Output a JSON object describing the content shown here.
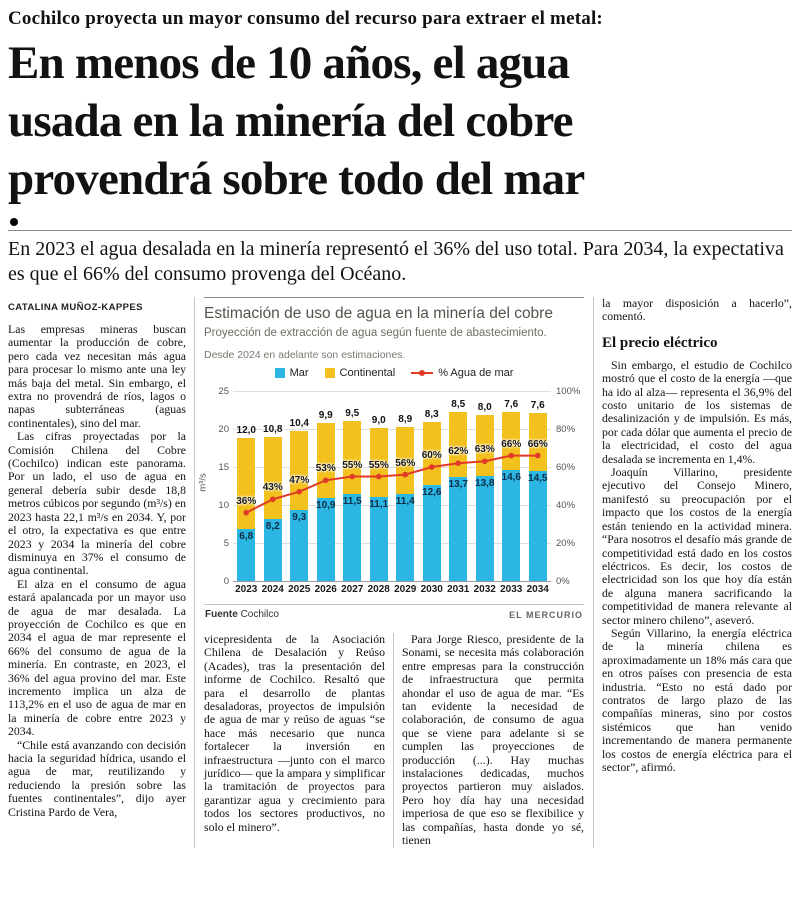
{
  "kicker": "Cochilco proyecta un mayor consumo del recurso para extraer el metal:",
  "headline": {
    "lines": [
      "En menos de 10 años, el agua",
      "usada en la minería del cobre",
      "provendrá sobre todo del mar"
    ]
  },
  "deck": "En 2023 el agua desalada en la minería representó el 36% del uso total. Para 2034, la expectativa es que el 66% del consumo provenga del Océano.",
  "byline": "CATALINA MUÑOZ-KAPPES",
  "columns": {
    "left": [
      "Las empresas mineras buscan aumentar la producción de cobre, pero cada vez necesitan más agua para procesar lo mismo ante una ley más baja del metal. Sin embargo, el extra no provendrá de ríos, lagos o napas subterráneas (aguas continentales), sino del mar.",
      "Las cifras proyectadas por la Comisión Chilena del Cobre (Cochilco) indican este panorama. Por un lado, el uso de agua en general debería subir desde 18,8 metros cúbicos por segundo (m³/s) en 2023 hasta 22,1 m³/s en 2034. Y, por el otro, la expectativa es que entre 2023 y 2034 la minería del cobre disminuya en 37% el consumo de agua continental.",
      "El alza en el consumo de agua estará apalancada por un mayor uso de agua de mar desalada. La proyección de Cochilco es que en 2034 el agua de mar represente el 66% del consumo de agua de la minería. En contraste, en 2023, el 36% del agua provino del mar. Este incremento implica un alza de 113,2% en el uso de agua de mar en la minería de cobre entre 2023 y 2034.",
      "“Chile está avanzando con decisión hacia la seguridad hídrica, usando el agua de mar, reutilizando y reduciendo la presión sobre las fuentes continentales”, dijo ayer Cristina Pardo de Vera,"
    ],
    "center_left": [
      "vicepresidenta de la Asociación Chilena de Desalación y Reúso (Acades), tras la presentación del informe de Cochilco. Resaltó que para el desarrollo de plantas desaladoras, proyectos de impulsión de agua de mar y reúso de aguas “se hace más necesario que nunca fortalecer la inversión en infraestructura —junto con el marco jurídico— que la ampara y simplificar la tramitación de proyectos para garantizar agua y crecimiento para todos los sectores productivos, no solo el minero”."
    ],
    "center_right": [
      "Para Jorge Riesco, presidente de la Sonami, se necesita más colaboración entre empresas para la construcción de infraestructura que permita ahondar el uso de agua de mar. “Es tan evidente la necesidad de colaboración, de consumo de agua que se viene para adelante si se cumplen las proyecciones de producción (...). Hay muchas instalaciones dedicadas, muchos proyectos partieron muy aislados. Pero hoy día hay una necesidad imperiosa de que eso se flexibilice y las compañías, hasta donde yo sé, tienen"
    ],
    "right": {
      "continuation": "la mayor disposición a hacerlo”, comentó.",
      "heading": "El precio eléctrico",
      "paragraphs": [
        "Sin embargo, el estudio de Cochilco mostró que el costo de la energía —que ha ido al alza— representa el 36,9% del costo unitario de los sistemas de desalinización y de impulsión. Es más, por cada dólar que aumenta el precio de la electricidad, el costo del agua desalada se incrementa en 1,4%.",
        "Joaquín Villarino, presidente ejecutivo del Consejo Minero, manifestó su preocupación por el impacto que los costos de la energía están teniendo en la actividad minera. “Para nosotros el desafío más grande de competitividad está dado en los costos eléctricos. Es decir, los costos de electricidad son los que hoy día están de alguna manera sacrificando la competitividad de manera relevante al sector minero chileno”, aseveró.",
        "Según Villarino, la energía eléctrica de la minería chilena es aproximadamente un 18% más cara que en otros países con presencia de esta industria. “Esto no está dado por contratos de largo plazo de las compañías mineras, sino por costos sistémicos que han venido incrementando de manera permanente los costos de energía eléctrica para el sector”, afirmó."
      ]
    }
  },
  "chart": {
    "title": "Estimación de uso de agua en la minería del cobre",
    "subtitle": "Proyección de extracción de agua según fuente de abastecimiento.",
    "note": "Desde 2024 en adelante son estimaciones.",
    "source_label": "Fuente",
    "source": "Cochilco",
    "credit": "EL MERCURIO"
  },
  "chart_data": {
    "type": "bar",
    "stacked": true,
    "categories": [
      "2023",
      "2024",
      "2025",
      "2026",
      "2027",
      "2028",
      "2029",
      "2030",
      "2031",
      "2032",
      "2033",
      "2034"
    ],
    "series": [
      {
        "name": "Mar",
        "color": "#2bb6e4",
        "values": [
          6.8,
          8.2,
          9.3,
          10.9,
          11.5,
          11.1,
          11.4,
          12.6,
          13.7,
          13.8,
          14.6,
          14.5
        ]
      },
      {
        "name": "Continental",
        "color": "#f2c11e",
        "values": [
          12.0,
          10.8,
          10.4,
          9.9,
          9.5,
          9.0,
          8.9,
          8.3,
          8.5,
          8.0,
          7.6,
          7.6
        ]
      }
    ],
    "line": {
      "name": "% Agua de mar",
      "color": "#e13a26",
      "axis": "right",
      "values": [
        36,
        43,
        47,
        53,
        55,
        55,
        56,
        60,
        62,
        63,
        66,
        66
      ]
    },
    "ylabel": "m³/s",
    "ylim": [
      0,
      25
    ],
    "yticks": [
      0,
      5,
      10,
      15,
      20,
      25
    ],
    "y2lim": [
      0,
      100
    ],
    "y2ticks": [
      "0%",
      "20%",
      "40%",
      "60%",
      "80%",
      "100%"
    ],
    "grid": true,
    "legend_position": "top"
  }
}
